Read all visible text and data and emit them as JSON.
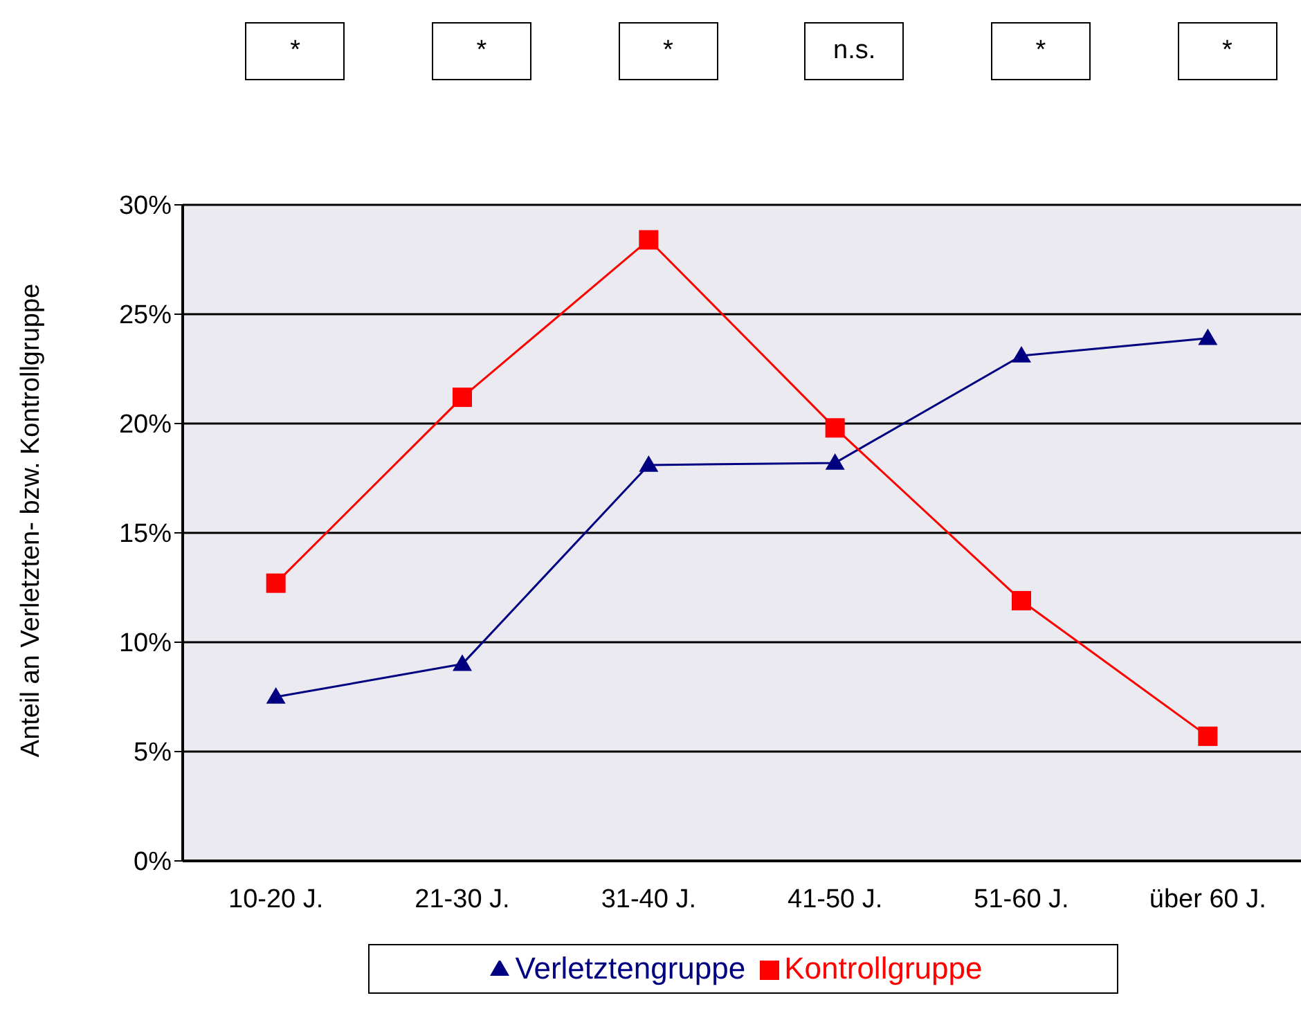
{
  "chart_data": {
    "type": "line",
    "ylabel": "Anteil an Verletzten- bzw. Kontrollgruppe",
    "categories": [
      "10-20 J.",
      "21-30 J.",
      "31-40 J.",
      "41-50 J.",
      "51-60 J.",
      "über 60 J."
    ],
    "series": [
      {
        "name": "Verletztengruppe",
        "color": "#000080",
        "marker": "triangle",
        "values": [
          7.5,
          9.0,
          18.1,
          18.2,
          23.1,
          23.9
        ]
      },
      {
        "name": "Kontrollgruppe",
        "color": "#ff0000",
        "marker": "square",
        "values": [
          12.7,
          21.2,
          28.4,
          19.8,
          11.9,
          5.7
        ]
      }
    ],
    "ylim": [
      0,
      30
    ],
    "yticks": [
      {
        "value": 0,
        "label": "0%"
      },
      {
        "value": 5,
        "label": "5%"
      },
      {
        "value": 10,
        "label": "10%"
      },
      {
        "value": 15,
        "label": "15%"
      },
      {
        "value": 20,
        "label": "20%"
      },
      {
        "value": 25,
        "label": "25%"
      },
      {
        "value": 30,
        "label": "30%"
      }
    ],
    "grid": "y",
    "legend": "bottom",
    "annotations": [
      "*",
      "*",
      "*",
      "n.s.",
      "*",
      "*"
    ]
  }
}
